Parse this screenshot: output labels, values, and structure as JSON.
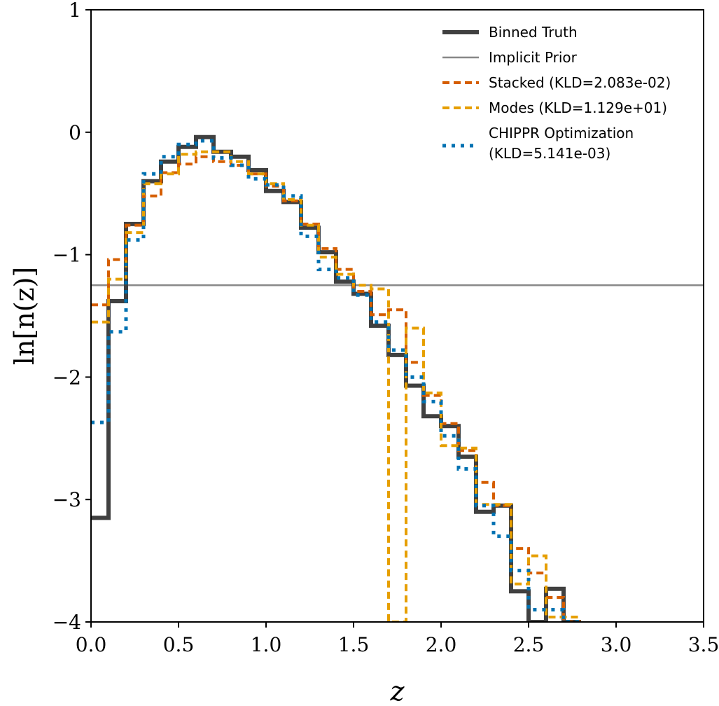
{
  "chart_data": {
    "type": "line",
    "title": "",
    "xlabel": "z",
    "ylabel": "ln[n(z)]",
    "xlim": [
      0,
      3.5
    ],
    "ylim": [
      -4,
      1
    ],
    "xticks": [
      0.0,
      0.5,
      1.0,
      1.5,
      2.0,
      2.5,
      3.0,
      3.5
    ],
    "xtick_labels": [
      "0.0",
      "0.5",
      "1.0",
      "1.5",
      "2.0",
      "2.5",
      "3.0",
      "3.5"
    ],
    "yticks": [
      1,
      0,
      -1,
      -2,
      -3,
      -4
    ],
    "ytick_labels": [
      "1",
      "0",
      "−1",
      "−2",
      "−3",
      "−4"
    ],
    "grid": false,
    "legend_position": "top-right",
    "bin_edges": [
      0.0,
      0.1,
      0.2,
      0.3,
      0.4,
      0.5,
      0.6,
      0.7,
      0.8,
      0.9,
      1.0,
      1.1,
      1.2,
      1.3,
      1.4,
      1.5,
      1.6,
      1.7,
      1.8,
      1.9,
      2.0,
      2.1,
      2.2,
      2.3,
      2.4,
      2.5,
      2.6,
      2.7,
      2.8
    ],
    "series": [
      {
        "name": "Binned Truth",
        "style": "solid-thick",
        "color": "#404040",
        "values": [
          -3.15,
          -1.38,
          -0.75,
          -0.4,
          -0.24,
          -0.12,
          -0.04,
          -0.16,
          -0.2,
          -0.31,
          -0.48,
          -0.57,
          -0.78,
          -0.98,
          -1.22,
          -1.32,
          -1.58,
          -1.82,
          -2.07,
          -2.32,
          -2.4,
          -2.65,
          -3.1,
          -3.05,
          -3.75,
          -4.0,
          -3.73,
          -4.0
        ]
      },
      {
        "name": "Implicit Prior",
        "style": "solid-thin",
        "color": "#888888",
        "constant": -1.25
      },
      {
        "name": "Stacked (KLD=2.083e-02)",
        "style": "dashed",
        "color": "#d55e00",
        "values": [
          -1.41,
          -1.04,
          -0.76,
          -0.52,
          -0.33,
          -0.26,
          -0.2,
          -0.24,
          -0.27,
          -0.34,
          -0.44,
          -0.56,
          -0.75,
          -0.95,
          -1.12,
          -1.3,
          -1.49,
          -1.45,
          -1.88,
          -2.15,
          -2.38,
          -2.6,
          -2.86,
          -3.05,
          -3.4,
          -3.6,
          -3.8,
          -4.0
        ]
      },
      {
        "name": "Modes (KLD=1.129e+01)",
        "style": "dashed",
        "color": "#e69f00",
        "values": [
          -1.55,
          -1.2,
          -0.82,
          -0.42,
          -0.34,
          -0.18,
          -0.16,
          -0.16,
          -0.24,
          -0.34,
          -0.42,
          -0.55,
          -0.76,
          -1.02,
          -1.16,
          -1.25,
          -1.28,
          -4.0,
          -1.6,
          -2.13,
          -2.56,
          -2.58,
          -3.04,
          -3.04,
          -3.69,
          -3.46,
          -3.96,
          -3.96
        ]
      },
      {
        "name": "CHIPPR Optimization (KLD=5.141e-03)",
        "name_line1": "CHIPPR Optimization",
        "name_line2": "(KLD=5.141e-03)",
        "style": "dotted",
        "color": "#0072b2",
        "values": [
          -2.37,
          -1.63,
          -0.88,
          -0.34,
          -0.2,
          -0.1,
          -0.07,
          -0.21,
          -0.27,
          -0.38,
          -0.43,
          -0.52,
          -0.85,
          -1.12,
          -1.19,
          -1.33,
          -1.55,
          -1.78,
          -2.0,
          -2.2,
          -2.48,
          -2.75,
          -3.05,
          -3.3,
          -3.58,
          -3.9,
          -3.9,
          -4.0
        ]
      }
    ]
  }
}
